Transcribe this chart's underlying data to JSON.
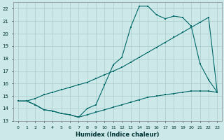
{
  "xlabel": "Humidex (Indice chaleur)",
  "bg_color": "#cce8e8",
  "grid_color": "#aacccc",
  "line_color": "#006666",
  "xlim": [
    -0.5,
    23.5
  ],
  "ylim": [
    13,
    22.5
  ],
  "yticks": [
    13,
    14,
    15,
    16,
    17,
    18,
    19,
    20,
    21,
    22
  ],
  "xticks": [
    0,
    1,
    2,
    3,
    4,
    5,
    6,
    7,
    8,
    9,
    10,
    11,
    12,
    13,
    14,
    15,
    16,
    17,
    18,
    19,
    20,
    21,
    22,
    23
  ],
  "line1_x": [
    0,
    1,
    2,
    3,
    4,
    5,
    6,
    7,
    8,
    9,
    10,
    11,
    12,
    13,
    14,
    15,
    16,
    17,
    18,
    19,
    20,
    21,
    22,
    23
  ],
  "line1_y": [
    14.6,
    14.6,
    14.3,
    13.9,
    13.8,
    13.6,
    13.5,
    13.3,
    14.0,
    14.3,
    15.9,
    17.5,
    18.1,
    20.5,
    22.2,
    22.2,
    21.5,
    21.2,
    21.4,
    21.3,
    20.6,
    17.6,
    16.3,
    15.3
  ],
  "line2_x": [
    0,
    1,
    2,
    3,
    4,
    5,
    6,
    7,
    8,
    9,
    10,
    11,
    12,
    13,
    14,
    15,
    16,
    17,
    18,
    19,
    20,
    21,
    22,
    23
  ],
  "line2_y": [
    14.6,
    14.6,
    14.3,
    13.9,
    13.8,
    13.6,
    13.5,
    13.3,
    13.5,
    13.7,
    13.9,
    14.1,
    14.3,
    14.5,
    14.7,
    14.9,
    15.0,
    15.1,
    15.2,
    15.3,
    15.4,
    15.4,
    15.4,
    15.3
  ],
  "line3_x": [
    0,
    1,
    2,
    3,
    4,
    5,
    6,
    7,
    8,
    9,
    10,
    11,
    12,
    13,
    14,
    15,
    16,
    17,
    18,
    19,
    20,
    21,
    22,
    23
  ],
  "line3_y": [
    14.6,
    14.6,
    14.8,
    15.1,
    15.3,
    15.5,
    15.7,
    15.9,
    16.1,
    16.4,
    16.7,
    17.0,
    17.3,
    17.7,
    18.1,
    18.5,
    18.9,
    19.3,
    19.7,
    20.1,
    20.5,
    20.9,
    21.3,
    15.3
  ]
}
